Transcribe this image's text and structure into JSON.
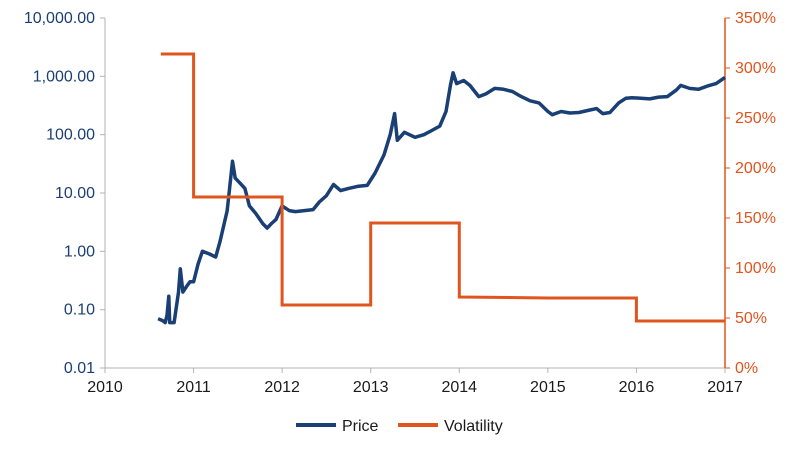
{
  "chart_data": {
    "type": "line",
    "x_axis": {
      "min": 2010,
      "max": 2017,
      "ticks": [
        "2010",
        "2011",
        "2012",
        "2013",
        "2014",
        "2015",
        "2016",
        "2017"
      ]
    },
    "y_left": {
      "scale": "log",
      "min": 0.01,
      "max": 10000,
      "ticks": [
        "0.01",
        "0.10",
        "1.00",
        "10.00",
        "100.00",
        "1,000.00",
        "10,000.00"
      ],
      "color": "#1a3f75"
    },
    "y_right": {
      "scale": "linear",
      "min": 0,
      "max": 350,
      "ticks": [
        "0%",
        "50%",
        "100%",
        "150%",
        "200%",
        "250%",
        "300%",
        "350%"
      ],
      "color": "#e0541e"
    },
    "grid": false,
    "legend": {
      "position": "bottom"
    },
    "series": [
      {
        "name": "Price",
        "axis": "left",
        "color": "#1a3f75",
        "points": [
          [
            2010.6,
            0.07
          ],
          [
            2010.65,
            0.065
          ],
          [
            2010.68,
            0.06
          ],
          [
            2010.7,
            0.08
          ],
          [
            2010.72,
            0.17
          ],
          [
            2010.73,
            0.06
          ],
          [
            2010.78,
            0.06
          ],
          [
            2010.83,
            0.2
          ],
          [
            2010.85,
            0.5
          ],
          [
            2010.88,
            0.2
          ],
          [
            2010.92,
            0.25
          ],
          [
            2010.96,
            0.3
          ],
          [
            2011.0,
            0.3
          ],
          [
            2011.05,
            0.6
          ],
          [
            2011.1,
            1.0
          ],
          [
            2011.18,
            0.9
          ],
          [
            2011.25,
            0.8
          ],
          [
            2011.3,
            1.5
          ],
          [
            2011.38,
            5.0
          ],
          [
            2011.44,
            35.0
          ],
          [
            2011.47,
            18.0
          ],
          [
            2011.52,
            15.0
          ],
          [
            2011.58,
            12.0
          ],
          [
            2011.63,
            6.0
          ],
          [
            2011.7,
            4.5
          ],
          [
            2011.78,
            3.0
          ],
          [
            2011.83,
            2.5
          ],
          [
            2011.88,
            3.0
          ],
          [
            2011.93,
            3.5
          ],
          [
            2012.0,
            6.0
          ],
          [
            2012.08,
            5.0
          ],
          [
            2012.15,
            4.8
          ],
          [
            2012.25,
            5.0
          ],
          [
            2012.35,
            5.2
          ],
          [
            2012.42,
            7.0
          ],
          [
            2012.5,
            9.0
          ],
          [
            2012.58,
            14.0
          ],
          [
            2012.66,
            11.0
          ],
          [
            2012.75,
            12.0
          ],
          [
            2012.85,
            13.0
          ],
          [
            2012.96,
            13.5
          ],
          [
            2013.05,
            22.0
          ],
          [
            2013.15,
            45.0
          ],
          [
            2013.22,
            100.0
          ],
          [
            2013.27,
            230.0
          ],
          [
            2013.3,
            80.0
          ],
          [
            2013.38,
            110.0
          ],
          [
            2013.5,
            90.0
          ],
          [
            2013.6,
            100.0
          ],
          [
            2013.7,
            120.0
          ],
          [
            2013.78,
            140.0
          ],
          [
            2013.85,
            250.0
          ],
          [
            2013.9,
            700.0
          ],
          [
            2013.93,
            1150.0
          ],
          [
            2013.97,
            750.0
          ],
          [
            2014.05,
            850.0
          ],
          [
            2014.12,
            700.0
          ],
          [
            2014.22,
            450.0
          ],
          [
            2014.3,
            500.0
          ],
          [
            2014.4,
            620.0
          ],
          [
            2014.5,
            600.0
          ],
          [
            2014.6,
            550.0
          ],
          [
            2014.7,
            450.0
          ],
          [
            2014.8,
            380.0
          ],
          [
            2014.9,
            350.0
          ],
          [
            2015.0,
            250.0
          ],
          [
            2015.05,
            220.0
          ],
          [
            2015.15,
            250.0
          ],
          [
            2015.25,
            235.0
          ],
          [
            2015.35,
            240.0
          ],
          [
            2015.45,
            260.0
          ],
          [
            2015.55,
            280.0
          ],
          [
            2015.62,
            230.0
          ],
          [
            2015.7,
            240.0
          ],
          [
            2015.8,
            350.0
          ],
          [
            2015.88,
            420.0
          ],
          [
            2015.95,
            430.0
          ],
          [
            2016.05,
            420.0
          ],
          [
            2016.15,
            410.0
          ],
          [
            2016.25,
            440.0
          ],
          [
            2016.35,
            450.0
          ],
          [
            2016.45,
            580.0
          ],
          [
            2016.5,
            700.0
          ],
          [
            2016.6,
            620.0
          ],
          [
            2016.7,
            600.0
          ],
          [
            2016.8,
            680.0
          ],
          [
            2016.9,
            750.0
          ],
          [
            2017.0,
            960.0
          ]
        ]
      },
      {
        "name": "Volatility",
        "axis": "right",
        "color": "#e0541e",
        "points": [
          [
            2010.63,
            314
          ],
          [
            2011.0,
            314
          ],
          [
            2011.0,
            171
          ],
          [
            2012.0,
            171
          ],
          [
            2012.0,
            63
          ],
          [
            2013.0,
            63
          ],
          [
            2013.0,
            145
          ],
          [
            2014.0,
            145
          ],
          [
            2014.0,
            71
          ],
          [
            2015.0,
            70
          ],
          [
            2016.0,
            70
          ],
          [
            2016.0,
            47
          ],
          [
            2017.0,
            47
          ]
        ]
      }
    ]
  }
}
